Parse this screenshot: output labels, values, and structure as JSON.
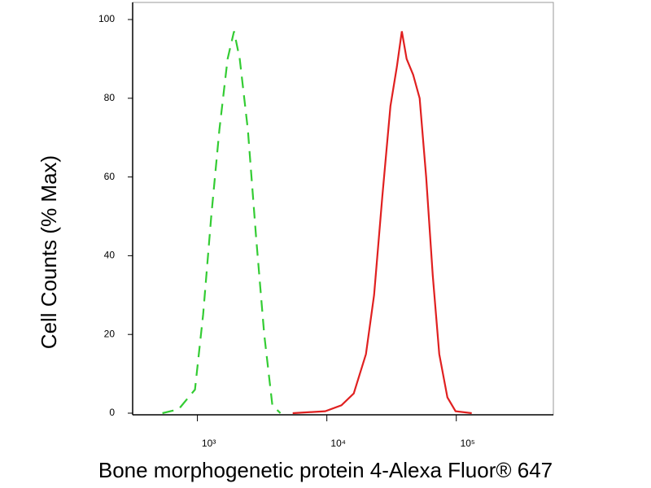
{
  "chart_data": {
    "type": "line",
    "x_label": "Bone morphogenetic protein 4-Alexa Fluor® 647",
    "y_label": "Cell Counts (% Max)",
    "xscale": "log",
    "xlim": [
      316,
      562000
    ],
    "xticks": [
      {
        "value": 1000,
        "label": "10³"
      },
      {
        "value": 10000,
        "label": "10⁴"
      },
      {
        "value": 100000,
        "label": "10⁵"
      }
    ],
    "ylim": [
      0,
      100
    ],
    "yticks": [
      0,
      20,
      40,
      60,
      80,
      100
    ],
    "series": [
      {
        "color": "#33cc33",
        "dash": "dashed",
        "x": [
          537,
          716,
          957,
          1107,
          1279,
          1479,
          1711,
          1919,
          2124,
          2455,
          2838,
          3281,
          3794,
          4380
        ],
        "values": [
          0,
          1,
          6,
          25,
          50,
          72,
          90,
          97,
          90,
          72,
          45,
          20,
          2,
          0
        ]
      },
      {
        "color": "#e02020",
        "dash": "solid",
        "x": [
          5445,
          9705,
          12970,
          16140,
          20050,
          23180,
          26800,
          30980,
          34760,
          37930,
          41310,
          46420,
          52120,
          58480,
          65760,
          73810,
          85310,
          98620,
          131600
        ],
        "values": [
          0,
          0.5,
          2,
          5,
          15,
          30,
          55,
          78,
          88,
          97,
          90,
          86,
          80,
          60,
          35,
          15,
          4,
          0.5,
          0
        ]
      }
    ]
  }
}
